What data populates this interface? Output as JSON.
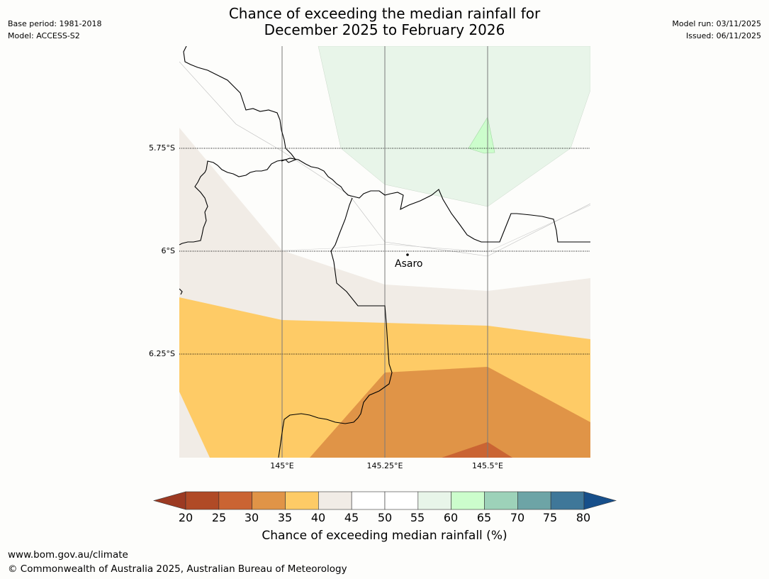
{
  "title": {
    "line1": "Chance of exceeding the median rainfall for",
    "line2": "December 2025 to February 2026"
  },
  "meta_left": {
    "base_period": "Base period: 1981-2018",
    "model": "Model: ACCESS-S2"
  },
  "meta_right": {
    "model_run": "Model run: 03/11/2025",
    "issued": "Issued: 06/11/2025"
  },
  "map": {
    "lat_labels": [
      "5.75°S",
      "6°S",
      "6.25°S"
    ],
    "lon_labels": [
      "145°E",
      "145.25°E",
      "145.5°E"
    ],
    "place": {
      "name": "Asaro",
      "lon": 145.305,
      "lat": -6.01
    }
  },
  "colorbar": {
    "ticks": [
      "20",
      "25",
      "30",
      "35",
      "40",
      "45",
      "50",
      "55",
      "60",
      "65",
      "70",
      "75",
      "80"
    ],
    "bins": [
      {
        "range": "<20",
        "color": "#9c3a22"
      },
      {
        "range": "20-25",
        "color": "#b04a26"
      },
      {
        "range": "25-30",
        "color": "#ca6433"
      },
      {
        "range": "30-35",
        "color": "#e09447"
      },
      {
        "range": "35-40",
        "color": "#fecb66"
      },
      {
        "range": "40-45",
        "color": "#f1ece6"
      },
      {
        "range": "45-50",
        "color": "#ffffff"
      },
      {
        "range": "50-55",
        "color": "#ffffff"
      },
      {
        "range": "55-60",
        "color": "#e8f5e9"
      },
      {
        "range": "60-65",
        "color": "#ccfdcc"
      },
      {
        "range": "65-70",
        "color": "#9dd2b9"
      },
      {
        "range": "70-75",
        "color": "#6da4a6"
      },
      {
        "range": "75-80",
        "color": "#3f7799"
      },
      {
        "range": ">80",
        "color": "#174f8a"
      }
    ],
    "title": "Chance of exceeding median rainfall (%)"
  },
  "footer": {
    "url": "www.bom.gov.au/climate",
    "copyright": "© Commonwealth of Australia 2025, Australian Bureau of Meteorology"
  }
}
